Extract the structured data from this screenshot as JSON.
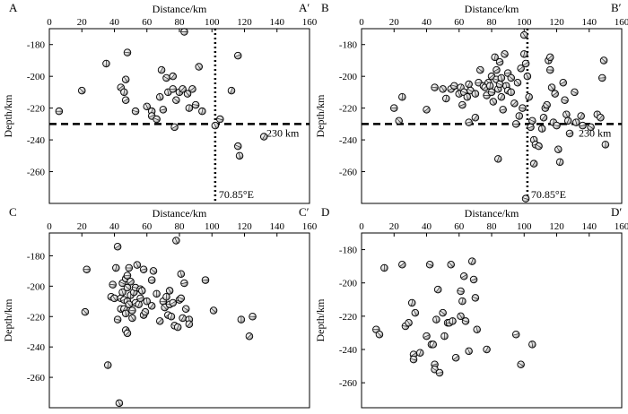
{
  "chart_data": [
    {
      "type": "scatter",
      "panel": "A",
      "corner_left": "A",
      "corner_right": "A′",
      "xlabel": "Distance/km",
      "ylabel": "Depth/km",
      "xlim": [
        0,
        160
      ],
      "ylim": [
        -280,
        -170
      ],
      "xticks": [
        0,
        20,
        40,
        60,
        80,
        100,
        120,
        140,
        160
      ],
      "yticks": [
        -180,
        -200,
        -220,
        -240,
        -260
      ],
      "tick_labels_x": [
        "0",
        "20",
        "40",
        "60",
        "80",
        "100",
        "120",
        "140",
        "160"
      ],
      "tick_labels_y": [
        "-180",
        "-200",
        "-220",
        "-240",
        "-260"
      ],
      "show_top_ticks": true,
      "hline": {
        "y": -230,
        "label": "230 km"
      },
      "vline": {
        "x": 102,
        "label": "70.85°E"
      },
      "points": [
        [
          6,
          -222
        ],
        [
          20,
          -209
        ],
        [
          35,
          -192
        ],
        [
          44,
          -207
        ],
        [
          48,
          -185
        ],
        [
          47,
          -202
        ],
        [
          46,
          -210
        ],
        [
          47,
          -215
        ],
        [
          53,
          -222
        ],
        [
          60,
          -219
        ],
        [
          63,
          -222
        ],
        [
          63,
          -225
        ],
        [
          66,
          -227
        ],
        [
          68,
          -213
        ],
        [
          69,
          -196
        ],
        [
          70,
          -221
        ],
        [
          72,
          -201
        ],
        [
          73,
          -210
        ],
        [
          76,
          -200
        ],
        [
          76,
          -208
        ],
        [
          78,
          -215
        ],
        [
          80,
          -210
        ],
        [
          82,
          -208
        ],
        [
          83,
          -172
        ],
        [
          85,
          -211
        ],
        [
          86,
          -220
        ],
        [
          88,
          -208
        ],
        [
          90,
          -218
        ],
        [
          92,
          -194
        ],
        [
          94,
          -222
        ],
        [
          77,
          -232
        ],
        [
          105,
          -227
        ],
        [
          102,
          -231
        ],
        [
          112,
          -209
        ],
        [
          116,
          -187
        ],
        [
          116,
          -244
        ],
        [
          117,
          -250
        ],
        [
          132,
          -238
        ]
      ]
    },
    {
      "type": "scatter",
      "panel": "B",
      "corner_left": "B",
      "corner_right": "B′",
      "xlabel": "Distance/km",
      "ylabel": "Depth/km",
      "xlim": [
        0,
        160
      ],
      "ylim": [
        -280,
        -170
      ],
      "xticks": [
        0,
        20,
        40,
        60,
        80,
        100,
        120,
        140,
        160
      ],
      "yticks": [
        -180,
        -200,
        -220,
        -240,
        -260
      ],
      "tick_labels_x": [
        "0",
        "20",
        "40",
        "60",
        "80",
        "100",
        "120",
        "140",
        "160"
      ],
      "tick_labels_y": [
        "-180",
        "-200",
        "-220",
        "-240",
        "-260"
      ],
      "show_top_ticks": true,
      "hline": {
        "y": -230,
        "label": "230 km"
      },
      "vline": {
        "x": 102,
        "label": "70.85°E"
      },
      "points": [
        [
          20,
          -220
        ],
        [
          23,
          -228
        ],
        [
          25,
          -213
        ],
        [
          40,
          -221
        ],
        [
          45,
          -207
        ],
        [
          50,
          -208
        ],
        [
          52,
          -214
        ],
        [
          55,
          -208
        ],
        [
          57,
          -206
        ],
        [
          60,
          -211
        ],
        [
          61,
          -207
        ],
        [
          62,
          -218
        ],
        [
          63,
          -210
        ],
        [
          65,
          -213
        ],
        [
          66,
          -205
        ],
        [
          66,
          -229
        ],
        [
          67,
          -209
        ],
        [
          70,
          -211
        ],
        [
          70,
          -226
        ],
        [
          72,
          -204
        ],
        [
          73,
          -196
        ],
        [
          75,
          -206
        ],
        [
          76,
          -207
        ],
        [
          77,
          -212
        ],
        [
          78,
          -204
        ],
        [
          79,
          -206
        ],
        [
          80,
          -200
        ],
        [
          80,
          -210
        ],
        [
          81,
          -216
        ],
        [
          82,
          -188
        ],
        [
          83,
          -196
        ],
        [
          83,
          -202
        ],
        [
          84,
          -208
        ],
        [
          84,
          -252
        ],
        [
          85,
          -191
        ],
        [
          85,
          -205
        ],
        [
          86,
          -201
        ],
        [
          86,
          -213
        ],
        [
          87,
          -221
        ],
        [
          88,
          -186
        ],
        [
          89,
          -206
        ],
        [
          90,
          -209
        ],
        [
          90,
          -198
        ],
        [
          92,
          -201
        ],
        [
          92,
          -210
        ],
        [
          94,
          -217
        ],
        [
          95,
          -230
        ],
        [
          96,
          -204
        ],
        [
          97,
          -225
        ],
        [
          98,
          -195
        ],
        [
          99,
          -220
        ],
        [
          100,
          -174
        ],
        [
          100,
          -186
        ],
        [
          101,
          -192
        ],
        [
          101,
          -277
        ],
        [
          102,
          -200
        ],
        [
          103,
          -213
        ],
        [
          104,
          -232
        ],
        [
          105,
          -228
        ],
        [
          106,
          -240
        ],
        [
          106,
          -255
        ],
        [
          107,
          -243
        ],
        [
          109,
          -244
        ],
        [
          111,
          -233
        ],
        [
          112,
          -226
        ],
        [
          113,
          -220
        ],
        [
          114,
          -218
        ],
        [
          115,
          -190
        ],
        [
          116,
          -188
        ],
        [
          116,
          -196
        ],
        [
          117,
          -207
        ],
        [
          118,
          -229
        ],
        [
          119,
          -211
        ],
        [
          120,
          -231
        ],
        [
          121,
          -246
        ],
        [
          122,
          -254
        ],
        [
          124,
          -204
        ],
        [
          125,
          -215
        ],
        [
          126,
          -224
        ],
        [
          127,
          -228
        ],
        [
          128,
          -236
        ],
        [
          131,
          -210
        ],
        [
          132,
          -229
        ],
        [
          135,
          -225
        ],
        [
          136,
          -231
        ],
        [
          141,
          -232
        ],
        [
          145,
          -224
        ],
        [
          147,
          -226
        ],
        [
          148,
          -201
        ],
        [
          149,
          -190
        ],
        [
          150,
          -243
        ]
      ]
    },
    {
      "type": "scatter",
      "panel": "C",
      "corner_left": "C",
      "corner_right": "C′",
      "xlabel": "Distance/km",
      "ylabel": "Depth/km",
      "xlim": [
        0,
        160
      ],
      "ylim": [
        -280,
        -165
      ],
      "xticks": [
        0,
        20,
        40,
        60,
        80,
        100,
        120,
        140,
        160
      ],
      "yticks": [
        -180,
        -200,
        -220,
        -240,
        -260
      ],
      "tick_labels_x": [
        "0",
        "20",
        "40",
        "60",
        "80",
        "100",
        "120",
        "140",
        "160"
      ],
      "tick_labels_y": [
        "-180",
        "-200",
        "-220",
        "-240",
        "-260"
      ],
      "show_top_ticks": false,
      "points": [
        [
          23,
          -189
        ],
        [
          22,
          -217
        ],
        [
          36,
          -252
        ],
        [
          38,
          -207
        ],
        [
          39,
          -199
        ],
        [
          40,
          -208
        ],
        [
          41,
          -188
        ],
        [
          42,
          -174
        ],
        [
          42,
          -222
        ],
        [
          43,
          -277
        ],
        [
          44,
          -215
        ],
        [
          44,
          -208
        ],
        [
          45,
          -198
        ],
        [
          45,
          -204
        ],
        [
          46,
          -215
        ],
        [
          46,
          -209
        ],
        [
          47,
          -195
        ],
        [
          47,
          -218
        ],
        [
          47,
          -229
        ],
        [
          48,
          -193
        ],
        [
          48,
          -201
        ],
        [
          48,
          -210
        ],
        [
          48,
          -231
        ],
        [
          49,
          -188
        ],
        [
          49,
          -212
        ],
        [
          50,
          -206
        ],
        [
          50,
          -197
        ],
        [
          51,
          -216
        ],
        [
          51,
          -221
        ],
        [
          52,
          -204
        ],
        [
          53,
          -211
        ],
        [
          53,
          -201
        ],
        [
          54,
          -186
        ],
        [
          55,
          -212
        ],
        [
          56,
          -208
        ],
        [
          56,
          -202
        ],
        [
          57,
          -203
        ],
        [
          58,
          -219
        ],
        [
          58,
          -189
        ],
        [
          59,
          -217
        ],
        [
          60,
          -210
        ],
        [
          63,
          -213
        ],
        [
          63,
          -196
        ],
        [
          64,
          -190
        ],
        [
          66,
          -205
        ],
        [
          68,
          -223
        ],
        [
          70,
          -210
        ],
        [
          71,
          -214
        ],
        [
          72,
          -207
        ],
        [
          73,
          -219
        ],
        [
          74,
          -212
        ],
        [
          74,
          -203
        ],
        [
          75,
          -220
        ],
        [
          76,
          -211
        ],
        [
          77,
          -226
        ],
        [
          78,
          -170
        ],
        [
          79,
          -227
        ],
        [
          80,
          -209
        ],
        [
          81,
          -208
        ],
        [
          81,
          -192
        ],
        [
          82,
          -221
        ],
        [
          83,
          -198
        ],
        [
          84,
          -215
        ],
        [
          86,
          -222
        ],
        [
          86,
          -225
        ],
        [
          96,
          -196
        ],
        [
          101,
          -216
        ],
        [
          118,
          -222
        ],
        [
          123,
          -233
        ],
        [
          125,
          -220
        ]
      ]
    },
    {
      "type": "scatter",
      "panel": "D",
      "corner_left": "D",
      "corner_right": "D′",
      "xlabel": "Distance/km",
      "ylabel": "Depth/km",
      "xlim": [
        0,
        160
      ],
      "ylim": [
        -275,
        -170
      ],
      "xticks": [
        0,
        20,
        40,
        60,
        80,
        100,
        120,
        140,
        160
      ],
      "yticks": [
        -180,
        -200,
        -220,
        -240,
        -260
      ],
      "tick_labels_x": [
        "0",
        "20",
        "40",
        "60",
        "80",
        "100",
        "120",
        "140",
        "160"
      ],
      "tick_labels_y": [
        "-180",
        "-200",
        "-220",
        "-240",
        "-260"
      ],
      "show_top_ticks": false,
      "points": [
        [
          9,
          -228
        ],
        [
          11,
          -231
        ],
        [
          14,
          -191
        ],
        [
          25,
          -189
        ],
        [
          27,
          -226
        ],
        [
          29,
          -224
        ],
        [
          31,
          -212
        ],
        [
          32,
          -243
        ],
        [
          32,
          -246
        ],
        [
          33,
          -218
        ],
        [
          36,
          -242
        ],
        [
          40,
          -232
        ],
        [
          42,
          -189
        ],
        [
          43,
          -237
        ],
        [
          44,
          -237
        ],
        [
          45,
          -249
        ],
        [
          45,
          -252
        ],
        [
          46,
          -222
        ],
        [
          47,
          -204
        ],
        [
          48,
          -254
        ],
        [
          50,
          -218
        ],
        [
          51,
          -232
        ],
        [
          53,
          -224
        ],
        [
          54,
          -224
        ],
        [
          55,
          -189
        ],
        [
          56,
          -223
        ],
        [
          58,
          -245
        ],
        [
          61,
          -205
        ],
        [
          61,
          -220
        ],
        [
          62,
          -211
        ],
        [
          63,
          -196
        ],
        [
          64,
          -223
        ],
        [
          66,
          -241
        ],
        [
          68,
          -187
        ],
        [
          69,
          -198
        ],
        [
          70,
          -209
        ],
        [
          71,
          -228
        ],
        [
          77,
          -240
        ],
        [
          95,
          -231
        ],
        [
          98,
          -249
        ],
        [
          105,
          -237
        ]
      ]
    }
  ]
}
